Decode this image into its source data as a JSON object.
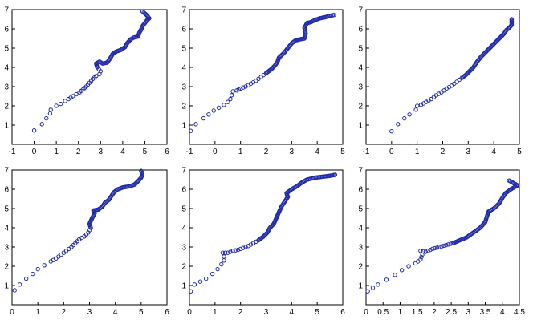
{
  "chart_data": [
    {
      "type": "scatter",
      "title": "",
      "xlabel": "",
      "ylabel": "",
      "xlim": [
        -1,
        6
      ],
      "ylim": [
        0,
        7
      ],
      "xticks": [
        "-1",
        "0",
        "1",
        "2",
        "3",
        "4",
        "5",
        "6"
      ],
      "yticks": [
        "1",
        "2",
        "3",
        "4",
        "5",
        "6",
        "7"
      ],
      "marker_color": "#1f2aa8",
      "points": [
        [
          0.0,
          0.72
        ],
        [
          0.35,
          1.05
        ],
        [
          0.55,
          1.35
        ],
        [
          0.72,
          1.6
        ],
        [
          0.75,
          1.8
        ],
        [
          1.0,
          2.0
        ],
        [
          1.2,
          2.1
        ],
        [
          1.4,
          2.25
        ],
        [
          1.55,
          2.35
        ],
        [
          1.75,
          2.5
        ],
        [
          1.9,
          2.6
        ],
        [
          2.05,
          2.7
        ],
        [
          2.2,
          2.85
        ],
        [
          2.35,
          3.0
        ],
        [
          2.5,
          3.2
        ],
        [
          2.65,
          3.4
        ],
        [
          2.8,
          3.55
        ],
        [
          2.95,
          3.65
        ],
        [
          3.0,
          3.8
        ],
        [
          2.85,
          4.0
        ],
        [
          2.8,
          4.2
        ],
        [
          2.95,
          4.3
        ],
        [
          3.1,
          4.2
        ],
        [
          3.3,
          4.25
        ],
        [
          3.45,
          4.5
        ],
        [
          3.55,
          4.7
        ],
        [
          3.7,
          4.82
        ],
        [
          3.9,
          4.9
        ],
        [
          4.1,
          5.05
        ],
        [
          4.2,
          5.25
        ],
        [
          4.35,
          5.45
        ],
        [
          4.5,
          5.55
        ],
        [
          4.7,
          5.6
        ],
        [
          4.75,
          5.8
        ],
        [
          4.85,
          6.0
        ],
        [
          4.9,
          6.15
        ],
        [
          5.0,
          6.3
        ],
        [
          5.1,
          6.45
        ],
        [
          5.2,
          6.55
        ],
        [
          5.1,
          6.7
        ],
        [
          4.95,
          6.85
        ],
        [
          4.9,
          6.9
        ]
      ]
    },
    {
      "type": "scatter",
      "title": "",
      "xlabel": "",
      "ylabel": "",
      "xlim": [
        -1,
        5
      ],
      "ylim": [
        0,
        7
      ],
      "xticks": [
        "-1",
        "0",
        "1",
        "2",
        "3",
        "4",
        "5"
      ],
      "yticks": [
        "1",
        "2",
        "3",
        "4",
        "5",
        "6",
        "7"
      ],
      "marker_color": "#1f2aa8",
      "points": [
        [
          -0.95,
          0.7
        ],
        [
          -0.75,
          1.05
        ],
        [
          -0.45,
          1.35
        ],
        [
          -0.25,
          1.55
        ],
        [
          -0.05,
          1.75
        ],
        [
          0.15,
          1.9
        ],
        [
          0.35,
          2.05
        ],
        [
          0.5,
          2.2
        ],
        [
          0.6,
          2.35
        ],
        [
          0.65,
          2.55
        ],
        [
          0.7,
          2.75
        ],
        [
          0.85,
          2.8
        ],
        [
          1.0,
          2.9
        ],
        [
          1.2,
          3.0
        ],
        [
          1.4,
          3.15
        ],
        [
          1.6,
          3.3
        ],
        [
          1.8,
          3.5
        ],
        [
          2.0,
          3.7
        ],
        [
          2.2,
          3.9
        ],
        [
          2.35,
          4.1
        ],
        [
          2.45,
          4.3
        ],
        [
          2.5,
          4.5
        ],
        [
          2.7,
          4.75
        ],
        [
          2.85,
          5.0
        ],
        [
          3.0,
          5.25
        ],
        [
          3.15,
          5.4
        ],
        [
          3.3,
          5.45
        ],
        [
          3.5,
          5.5
        ],
        [
          3.55,
          5.75
        ],
        [
          3.5,
          6.05
        ],
        [
          3.6,
          6.3
        ],
        [
          3.75,
          6.35
        ],
        [
          3.9,
          6.45
        ],
        [
          4.1,
          6.55
        ],
        [
          4.3,
          6.6
        ],
        [
          4.5,
          6.68
        ],
        [
          4.65,
          6.72
        ]
      ]
    },
    {
      "type": "scatter",
      "title": "",
      "xlabel": "",
      "ylabel": "",
      "xlim": [
        -1,
        5
      ],
      "ylim": [
        0,
        7
      ],
      "xticks": [
        "-1",
        "0",
        "1",
        "2",
        "3",
        "4",
        "5"
      ],
      "yticks": [
        "1",
        "2",
        "3",
        "4",
        "5",
        "6",
        "7"
      ],
      "marker_color": "#1f2aa8",
      "points": [
        [
          0.0,
          0.68
        ],
        [
          0.25,
          1.05
        ],
        [
          0.5,
          1.35
        ],
        [
          0.7,
          1.55
        ],
        [
          0.95,
          1.8
        ],
        [
          1.0,
          2.0
        ],
        [
          1.15,
          2.05
        ],
        [
          1.35,
          2.2
        ],
        [
          1.55,
          2.35
        ],
        [
          1.75,
          2.55
        ],
        [
          1.95,
          2.7
        ],
        [
          2.15,
          2.9
        ],
        [
          2.35,
          3.05
        ],
        [
          2.55,
          3.25
        ],
        [
          2.75,
          3.45
        ],
        [
          2.9,
          3.6
        ],
        [
          3.05,
          3.8
        ],
        [
          3.2,
          4.0
        ],
        [
          3.35,
          4.3
        ],
        [
          3.5,
          4.55
        ],
        [
          3.65,
          4.75
        ],
        [
          3.8,
          4.95
        ],
        [
          3.95,
          5.15
        ],
        [
          4.1,
          5.35
        ],
        [
          4.25,
          5.55
        ],
        [
          4.4,
          5.75
        ],
        [
          4.5,
          5.95
        ],
        [
          4.6,
          6.05
        ],
        [
          4.7,
          6.2
        ],
        [
          4.7,
          6.35
        ],
        [
          4.7,
          6.5
        ]
      ]
    },
    {
      "type": "scatter",
      "title": "",
      "xlabel": "",
      "ylabel": "",
      "xlim": [
        0,
        6
      ],
      "ylim": [
        0,
        7
      ],
      "xticks": [
        "0",
        "1",
        "2",
        "3",
        "4",
        "5",
        "6"
      ],
      "yticks": [
        "1",
        "2",
        "3",
        "4",
        "5",
        "6",
        "7"
      ],
      "marker_color": "#1f2aa8",
      "points": [
        [
          0.1,
          0.75
        ],
        [
          0.3,
          1.05
        ],
        [
          0.55,
          1.35
        ],
        [
          0.8,
          1.6
        ],
        [
          1.0,
          1.85
        ],
        [
          1.25,
          2.05
        ],
        [
          1.5,
          2.25
        ],
        [
          1.7,
          2.4
        ],
        [
          1.9,
          2.6
        ],
        [
          2.1,
          2.8
        ],
        [
          2.3,
          3.0
        ],
        [
          2.45,
          3.2
        ],
        [
          2.6,
          3.4
        ],
        [
          2.8,
          3.55
        ],
        [
          2.95,
          3.75
        ],
        [
          3.05,
          4.0
        ],
        [
          3.0,
          4.2
        ],
        [
          3.1,
          4.5
        ],
        [
          3.2,
          4.75
        ],
        [
          3.15,
          4.9
        ],
        [
          3.35,
          4.95
        ],
        [
          3.5,
          5.1
        ],
        [
          3.6,
          5.3
        ],
        [
          3.75,
          5.45
        ],
        [
          3.85,
          5.65
        ],
        [
          3.95,
          5.85
        ],
        [
          4.1,
          6.0
        ],
        [
          4.3,
          6.1
        ],
        [
          4.55,
          6.15
        ],
        [
          4.75,
          6.25
        ],
        [
          4.9,
          6.45
        ],
        [
          5.0,
          6.6
        ],
        [
          5.05,
          6.8
        ],
        [
          5.0,
          6.95
        ]
      ]
    },
    {
      "type": "scatter",
      "title": "",
      "xlabel": "",
      "ylabel": "",
      "xlim": [
        0,
        6
      ],
      "ylim": [
        0,
        7
      ],
      "xticks": [
        "0",
        "1",
        "2",
        "3",
        "4",
        "5",
        "6"
      ],
      "yticks": [
        "1",
        "2",
        "3",
        "4",
        "5",
        "6",
        "7"
      ],
      "marker_color": "#1f2aa8",
      "points": [
        [
          0.05,
          0.7
        ],
        [
          0.2,
          1.05
        ],
        [
          0.65,
          1.35
        ],
        [
          0.9,
          1.6
        ],
        [
          1.1,
          1.85
        ],
        [
          1.25,
          2.1
        ],
        [
          1.35,
          2.3
        ],
        [
          1.35,
          2.5
        ],
        [
          1.3,
          2.7
        ],
        [
          1.5,
          2.7
        ],
        [
          1.7,
          2.8
        ],
        [
          1.9,
          2.85
        ],
        [
          2.1,
          2.95
        ],
        [
          2.3,
          3.05
        ],
        [
          2.5,
          3.2
        ],
        [
          2.7,
          3.35
        ],
        [
          2.9,
          3.55
        ],
        [
          3.05,
          3.75
        ],
        [
          3.15,
          4.0
        ],
        [
          3.3,
          4.2
        ],
        [
          3.4,
          4.5
        ],
        [
          3.5,
          4.8
        ],
        [
          3.6,
          5.1
        ],
        [
          3.75,
          5.4
        ],
        [
          3.85,
          5.6
        ],
        [
          3.8,
          5.8
        ],
        [
          4.0,
          6.0
        ],
        [
          4.2,
          6.15
        ],
        [
          4.4,
          6.35
        ],
        [
          4.6,
          6.5
        ],
        [
          4.9,
          6.6
        ],
        [
          5.2,
          6.65
        ],
        [
          5.5,
          6.7
        ],
        [
          5.7,
          6.75
        ]
      ]
    },
    {
      "type": "scatter",
      "title": "",
      "xlabel": "",
      "ylabel": "",
      "xlim": [
        0,
        4.5
      ],
      "ylim": [
        0,
        7
      ],
      "xticks": [
        "0",
        "0.5",
        "1",
        "1.5",
        "2",
        "2.5",
        "3",
        "3.5",
        "4",
        "4.5"
      ],
      "yticks": [
        "1",
        "2",
        "3",
        "4",
        "5",
        "6",
        "7"
      ],
      "marker_color": "#1f2aa8",
      "points": [
        [
          0.05,
          0.7
        ],
        [
          0.35,
          1.05
        ],
        [
          0.6,
          1.3
        ],
        [
          0.85,
          1.55
        ],
        [
          1.05,
          1.8
        ],
        [
          1.25,
          2.0
        ],
        [
          1.45,
          2.15
        ],
        [
          1.6,
          2.35
        ],
        [
          1.65,
          2.6
        ],
        [
          1.6,
          2.8
        ],
        [
          1.75,
          2.75
        ],
        [
          1.95,
          2.9
        ],
        [
          2.15,
          3.0
        ],
        [
          2.35,
          3.1
        ],
        [
          2.55,
          3.2
        ],
        [
          2.75,
          3.35
        ],
        [
          2.95,
          3.5
        ],
        [
          3.15,
          3.75
        ],
        [
          3.35,
          4.0
        ],
        [
          3.5,
          4.3
        ],
        [
          3.55,
          4.6
        ],
        [
          3.6,
          4.85
        ],
        [
          3.75,
          5.0
        ],
        [
          3.9,
          5.25
        ],
        [
          4.0,
          5.55
        ],
        [
          4.1,
          5.8
        ],
        [
          4.25,
          6.0
        ],
        [
          4.35,
          6.1
        ],
        [
          4.45,
          6.2
        ],
        [
          4.3,
          6.35
        ],
        [
          4.2,
          6.45
        ]
      ]
    }
  ]
}
